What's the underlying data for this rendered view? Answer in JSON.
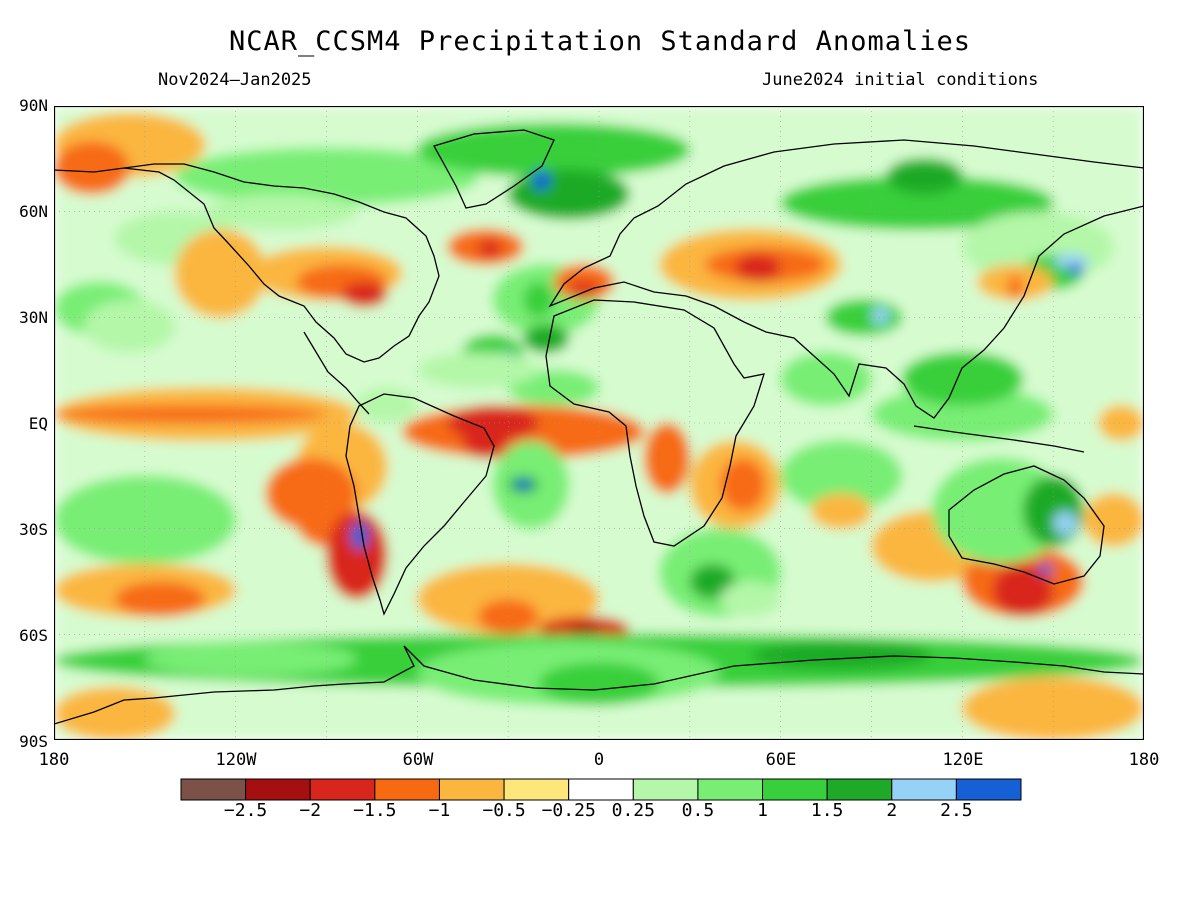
{
  "title": "NCAR_CCSM4 Precipitation Standard Anomalies",
  "subtitle_left": "Nov2024–Jan2025",
  "subtitle_right": "June2024 initial conditions",
  "lat_labels": [
    "90N",
    "60N",
    "30N",
    "EQ",
    "30S",
    "60S",
    "90S"
  ],
  "lon_labels": [
    "180",
    "120W",
    "60W",
    "0",
    "60E",
    "120E",
    "180"
  ],
  "legend": {
    "colors": [
      "#7b5148",
      "#a50f0f",
      "#d9261c",
      "#f76a12",
      "#fbb640",
      "#fde67a",
      "#ffffff",
      "#b4f7a8",
      "#78ee74",
      "#37cf3b",
      "#1eaa28",
      "#96d2f6",
      "#1660d6"
    ],
    "labels": [
      "−2.5",
      "−2",
      "−1.5",
      "−1",
      "−0.5",
      "−0.25",
      "0.25",
      "0.5",
      "1",
      "1.5",
      "2",
      "2.5"
    ]
  },
  "colors": {
    "land_outline": "#000000",
    "gridline": "#9a9a9a"
  }
}
